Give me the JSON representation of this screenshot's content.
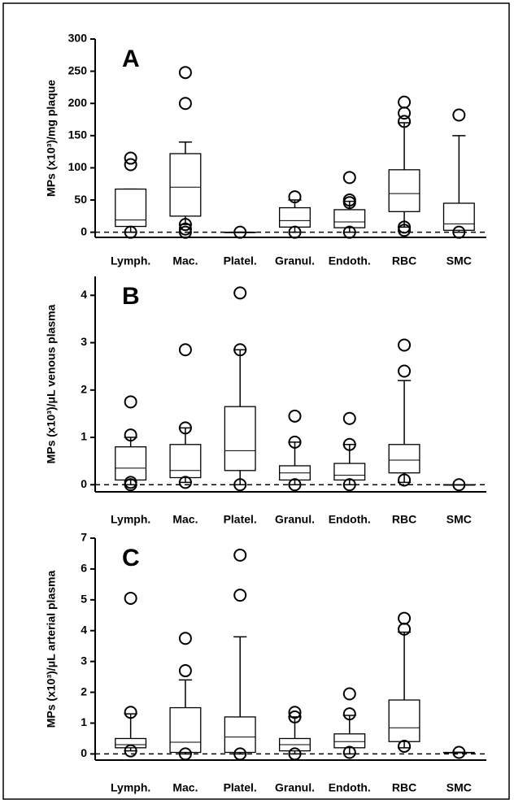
{
  "chart_data": [
    {
      "type": "box",
      "title": "A",
      "y_label": "MPs (x10³)/mg plaque",
      "categories": [
        "Lymph.",
        "Mac.",
        "Platel.",
        "Granul.",
        "Endoth.",
        "RBC",
        "SMC"
      ],
      "boxes": [
        {
          "whisker_low": 0,
          "q1": 9,
          "median": 19,
          "q3": 67,
          "whisker_high": 67,
          "outliers": [
            115,
            105,
            0
          ]
        },
        {
          "whisker_low": 12,
          "q1": 25,
          "median": 70,
          "q3": 122,
          "whisker_high": 140,
          "outliers": [
            248,
            200,
            12,
            5,
            0
          ]
        },
        {
          "whisker_low": 0,
          "q1": 0,
          "median": 0,
          "q3": 0,
          "whisker_high": 0,
          "outliers": [
            0
          ]
        },
        {
          "whisker_low": 0,
          "q1": 8,
          "median": 18,
          "q3": 38,
          "whisker_high": 50,
          "outliers": [
            55,
            0
          ]
        },
        {
          "whisker_low": 0,
          "q1": 7,
          "median": 16,
          "q3": 35,
          "whisker_high": 48,
          "outliers": [
            85,
            50,
            46,
            0
          ]
        },
        {
          "whisker_low": 8,
          "q1": 32,
          "median": 60,
          "q3": 97,
          "whisker_high": 170,
          "outliers": [
            202,
            185,
            172,
            8,
            3
          ]
        },
        {
          "whisker_low": 0,
          "q1": 3,
          "median": 13,
          "q3": 45,
          "whisker_high": 150,
          "outliers": [
            182,
            0
          ]
        }
      ],
      "ylim": [
        -8,
        300
      ],
      "yticks": [
        0,
        50,
        100,
        150,
        200,
        250,
        300
      ],
      "hline": 0
    },
    {
      "type": "box",
      "title": "B",
      "y_label": "MPs (x10³)/μL venous plasma",
      "categories": [
        "Lymph.",
        "Mac.",
        "Platel.",
        "Granul.",
        "Endoth.",
        "RBC",
        "SMC"
      ],
      "boxes": [
        {
          "whisker_low": 0,
          "q1": 0.1,
          "median": 0.35,
          "q3": 0.8,
          "whisker_high": 1.0,
          "outliers": [
            1.75,
            1.05,
            0.05,
            0
          ]
        },
        {
          "whisker_low": 0.05,
          "q1": 0.15,
          "median": 0.3,
          "q3": 0.85,
          "whisker_high": 1.2,
          "outliers": [
            2.85,
            1.2,
            0.05
          ]
        },
        {
          "whisker_low": 0,
          "q1": 0.3,
          "median": 0.72,
          "q3": 1.65,
          "whisker_high": 2.85,
          "outliers": [
            4.05,
            2.85,
            0
          ]
        },
        {
          "whisker_low": 0,
          "q1": 0.1,
          "median": 0.25,
          "q3": 0.4,
          "whisker_high": 0.9,
          "outliers": [
            1.45,
            0.9,
            0
          ]
        },
        {
          "whisker_low": 0,
          "q1": 0.1,
          "median": 0.2,
          "q3": 0.45,
          "whisker_high": 0.85,
          "outliers": [
            1.4,
            0.85,
            0
          ]
        },
        {
          "whisker_low": 0.05,
          "q1": 0.25,
          "median": 0.52,
          "q3": 0.85,
          "whisker_high": 2.2,
          "outliers": [
            2.95,
            2.4,
            0.1
          ]
        },
        {
          "whisker_low": 0,
          "q1": 0,
          "median": 0,
          "q3": 0,
          "whisker_high": 0,
          "outliers": [
            0
          ]
        }
      ],
      "ylim": [
        -0.15,
        4.4
      ],
      "yticks": [
        0,
        1,
        2,
        3,
        4
      ],
      "hline": 0
    },
    {
      "type": "box",
      "title": "C",
      "y_label": "MPs (x10³)/μL arterial plasma",
      "categories": [
        "Lymph.",
        "Mac.",
        "Platel.",
        "Granul.",
        "Endoth.",
        "RBC",
        "SMC"
      ],
      "boxes": [
        {
          "whisker_low": 0.1,
          "q1": 0.2,
          "median": 0.3,
          "q3": 0.5,
          "whisker_high": 1.3,
          "outliers": [
            5.05,
            1.35,
            0.1
          ]
        },
        {
          "whisker_low": 0,
          "q1": 0.05,
          "median": 0.38,
          "q3": 1.5,
          "whisker_high": 2.4,
          "outliers": [
            3.75,
            2.7,
            0
          ]
        },
        {
          "whisker_low": 0,
          "q1": 0.05,
          "median": 0.55,
          "q3": 1.2,
          "whisker_high": 3.8,
          "outliers": [
            6.45,
            5.15,
            0
          ]
        },
        {
          "whisker_low": 0,
          "q1": 0.1,
          "median": 0.3,
          "q3": 0.5,
          "whisker_high": 1.2,
          "outliers": [
            1.35,
            1.2,
            0
          ]
        },
        {
          "whisker_low": 0,
          "q1": 0.2,
          "median": 0.4,
          "q3": 0.65,
          "whisker_high": 1.25,
          "outliers": [
            1.95,
            1.3,
            0.05
          ]
        },
        {
          "whisker_low": 0.2,
          "q1": 0.4,
          "median": 0.85,
          "q3": 1.75,
          "whisker_high": 3.95,
          "outliers": [
            4.4,
            4.05,
            0.25
          ]
        },
        {
          "whisker_low": 0.05,
          "q1": 0.05,
          "median": 0.05,
          "q3": 0.05,
          "whisker_high": 0.05,
          "outliers": [
            0.05
          ]
        }
      ],
      "ylim": [
        -0.2,
        7
      ],
      "yticks": [
        0,
        1,
        2,
        3,
        4,
        5,
        6,
        7
      ],
      "hline": 0
    }
  ]
}
